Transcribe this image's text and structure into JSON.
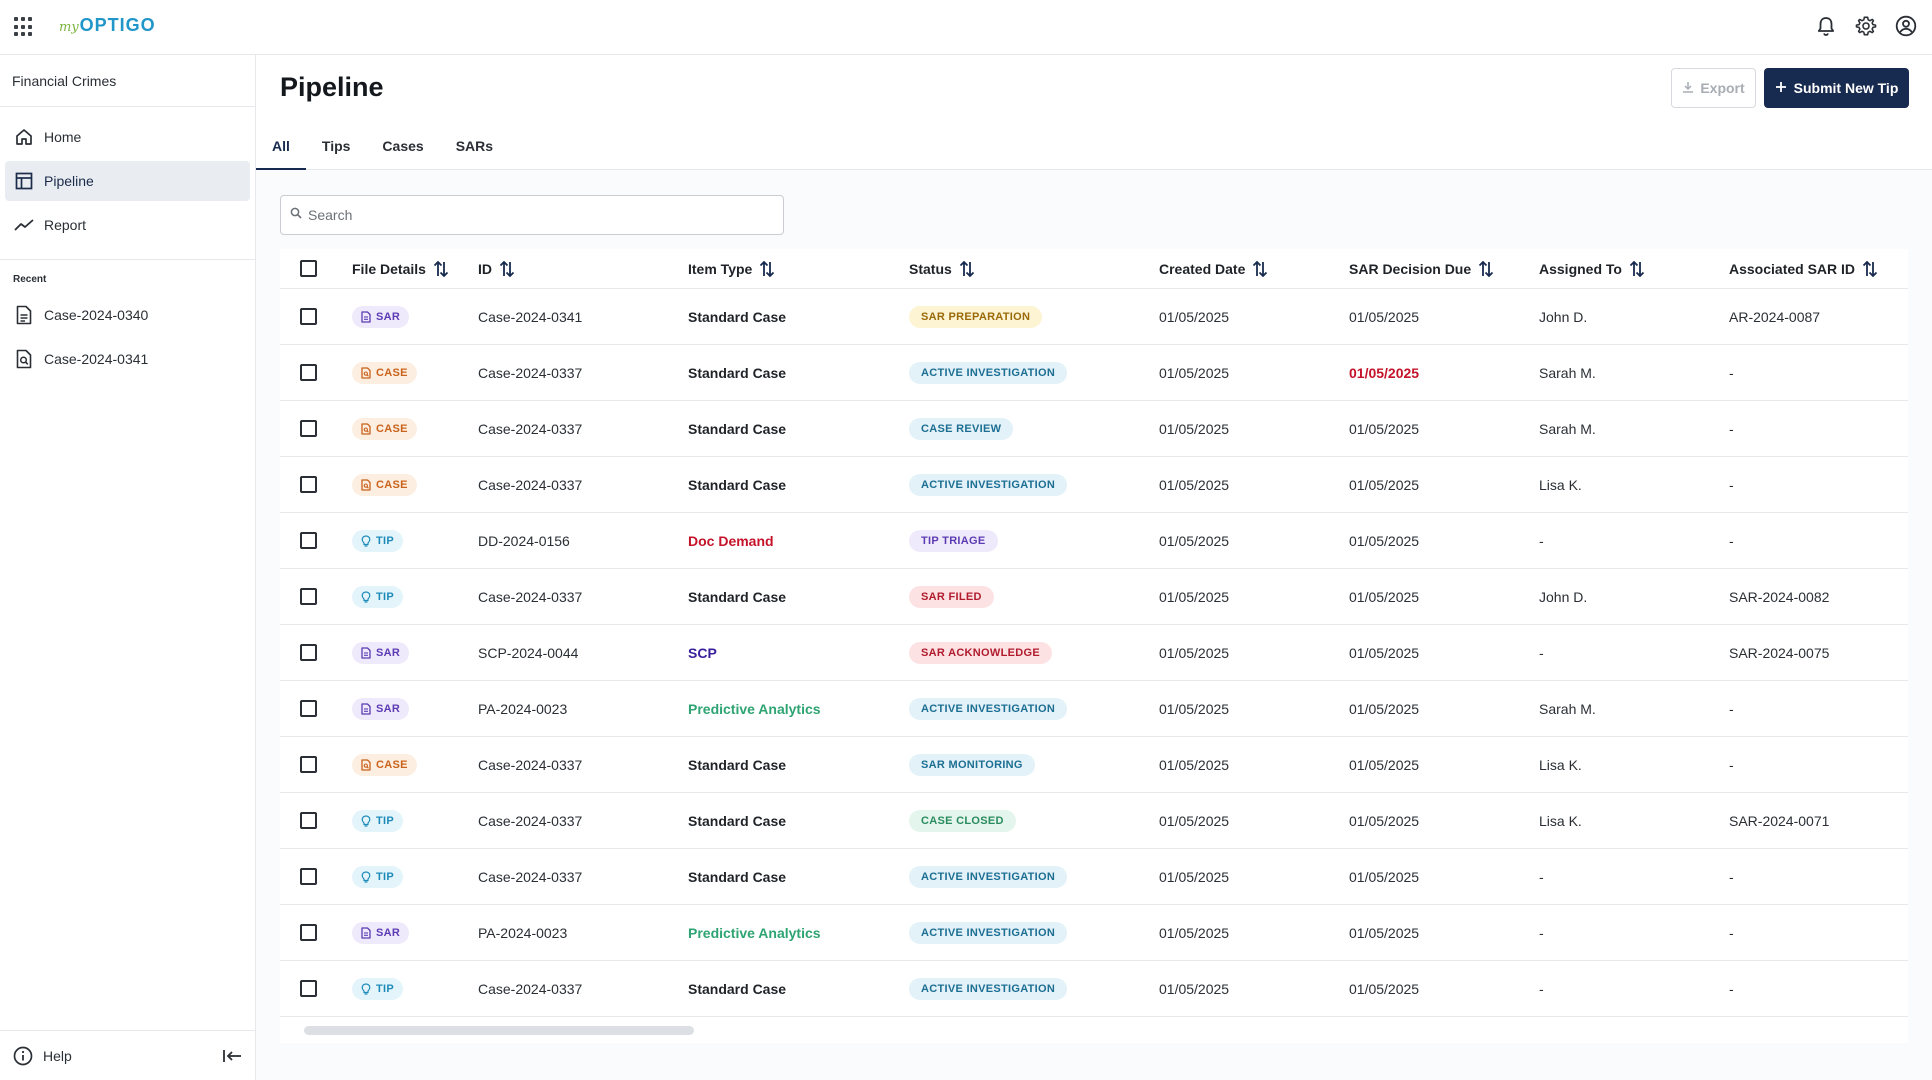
{
  "app": {
    "logo_prefix": "my",
    "logo_name": "OPTIGO"
  },
  "sidebar": {
    "workspace": "Financial Crimes",
    "nav": [
      {
        "label": "Home",
        "icon": "home-icon"
      },
      {
        "label": "Pipeline",
        "icon": "table-icon",
        "active": true
      },
      {
        "label": "Report",
        "icon": "trend-icon"
      }
    ],
    "recent_label": "Recent",
    "recent": [
      {
        "label": "Case-2024-0340",
        "icon": "document-icon"
      },
      {
        "label": "Case-2024-0341",
        "icon": "document-search-icon"
      }
    ],
    "help_label": "Help"
  },
  "header": {
    "title": "Pipeline",
    "export_label": "Export",
    "submit_label": "Submit New Tip"
  },
  "tabs": [
    {
      "label": "All",
      "active": true
    },
    {
      "label": "Tips"
    },
    {
      "label": "Cases"
    },
    {
      "label": "SARs"
    }
  ],
  "search": {
    "placeholder": "Search"
  },
  "table": {
    "columns": [
      "File Details",
      "ID",
      "Item Type",
      "Status",
      "Created Date",
      "SAR Decision Due",
      "Assigned To",
      "Associated SAR ID"
    ],
    "rows": [
      {
        "tag": "SAR",
        "id": "Case-2024-0341",
        "item_type": "Standard Case",
        "status": "SAR PREPARATION",
        "created": "01/05/2025",
        "due": "01/05/2025",
        "assigned": "John D.",
        "sar_id": "AR-2024-0087"
      },
      {
        "tag": "CASE",
        "id": "Case-2024-0337",
        "item_type": "Standard Case",
        "status": "ACTIVE INVESTIGATION",
        "created": "01/05/2025",
        "due": "01/05/2025",
        "assigned": "Sarah M.",
        "sar_id": "-"
      },
      {
        "tag": "CASE",
        "id": "Case-2024-0337",
        "item_type": "Standard Case",
        "status": "CASE REVIEW",
        "created": "01/05/2025",
        "due": "01/05/2025",
        "assigned": "Sarah M.",
        "sar_id": "-"
      },
      {
        "tag": "CASE",
        "id": "Case-2024-0337",
        "item_type": "Standard Case",
        "status": "ACTIVE INVESTIGATION",
        "created": "01/05/2025",
        "due": "01/05/2025",
        "assigned": "Lisa K.",
        "sar_id": "-"
      },
      {
        "tag": "TIP",
        "id": "DD-2024-0156",
        "item_type": "Doc Demand",
        "status": "TIP TRIAGE",
        "created": "01/05/2025",
        "due": "01/05/2025",
        "assigned": "-",
        "sar_id": "-"
      },
      {
        "tag": "TIP",
        "id": "Case-2024-0337",
        "item_type": "Standard Case",
        "status": "SAR FILED",
        "created": "01/05/2025",
        "due": "01/05/2025",
        "assigned": "John D.",
        "sar_id": "SAR-2024-0082"
      },
      {
        "tag": "SAR",
        "id": "SCP-2024-0044",
        "item_type": "SCP",
        "status": "SAR ACKNOWLEDGE",
        "created": "01/05/2025",
        "due": "01/05/2025",
        "assigned": "-",
        "sar_id": "SAR-2024-0075"
      },
      {
        "tag": "SAR",
        "id": "PA-2024-0023",
        "item_type": "Predictive Analytics",
        "status": "ACTIVE INVESTIGATION",
        "created": "01/05/2025",
        "due": "01/05/2025",
        "assigned": "Sarah M.",
        "sar_id": "-"
      },
      {
        "tag": "CASE",
        "id": "Case-2024-0337",
        "item_type": "Standard Case",
        "status": "SAR MONITORING",
        "created": "01/05/2025",
        "due": "01/05/2025",
        "assigned": "Lisa K.",
        "sar_id": "-"
      },
      {
        "tag": "TIP",
        "id": "Case-2024-0337",
        "item_type": "Standard Case",
        "status": "CASE CLOSED",
        "created": "01/05/2025",
        "due": "01/05/2025",
        "assigned": "Lisa K.",
        "sar_id": "SAR-2024-0071"
      },
      {
        "tag": "TIP",
        "id": "Case-2024-0337",
        "item_type": "Standard Case",
        "status": "ACTIVE INVESTIGATION",
        "created": "01/05/2025",
        "due": "01/05/2025",
        "assigned": "-",
        "sar_id": "-"
      },
      {
        "tag": "SAR",
        "id": "PA-2024-0023",
        "item_type": "Predictive Analytics",
        "status": "ACTIVE INVESTIGATION",
        "created": "01/05/2025",
        "due": "01/05/2025",
        "assigned": "-",
        "sar_id": "-"
      },
      {
        "tag": "TIP",
        "id": "Case-2024-0337",
        "item_type": "Standard Case",
        "status": "ACTIVE INVESTIGATION",
        "created": "01/05/2025",
        "due": "01/05/2025",
        "assigned": "-",
        "sar_id": "-"
      }
    ]
  },
  "colors": {
    "brand_navy": "#172a4f",
    "logo_blue": "#2196c9",
    "logo_green": "#7cb342",
    "overdue_red": "#c4132a"
  }
}
